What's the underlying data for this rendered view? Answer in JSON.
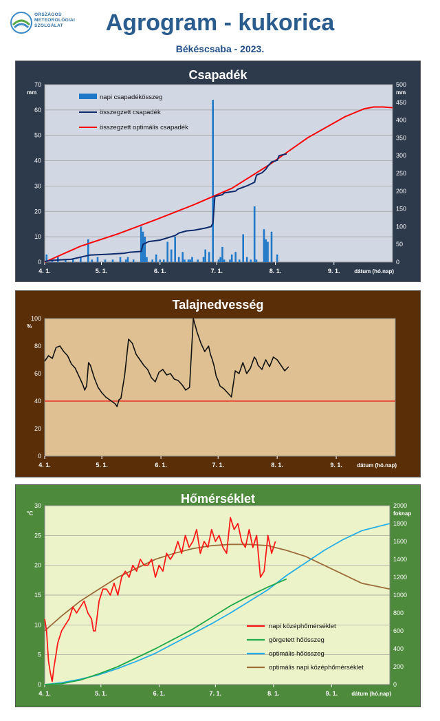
{
  "header": {
    "title": "Agrogram - kukorica",
    "subtitle": "Békéscsaba - 2023.",
    "logo_lines": [
      "ORSZÁGOS",
      "METEOROLÓGIAI",
      "SZOLGÁLAT"
    ]
  },
  "colors": {
    "logo": "#2c6fa8",
    "title": "#2a5c8e",
    "precip_panel": "#2d3a4c",
    "precip_plot": "#d1d7e3",
    "bars": "#1f78c8",
    "cumulative": "#0f2a6b",
    "optimal": "#ff0000",
    "soil_panel": "#5a2f08",
    "soil_plot": "#dfc092",
    "temp_panel": "#4e8a3c",
    "temp_plot": "#edf3c8",
    "daily_temp": "#ff1a1a",
    "rolling_heat": "#1fa84a",
    "optimal_heat": "#27aee6",
    "optimal_daily": "#9c6b3a"
  },
  "chart_data": [
    {
      "type": "bar",
      "title": "Csapadék",
      "ylabel": "mm",
      "y2label": "mm",
      "xlabel": "dátum (hó.nap)",
      "ylim": [
        0,
        70
      ],
      "y2lim": [
        0,
        500
      ],
      "yticks": [
        0,
        10,
        20,
        30,
        40,
        50,
        60,
        70
      ],
      "y2ticks": [
        0,
        50,
        100,
        150,
        200,
        250,
        300,
        350,
        400,
        450,
        500
      ],
      "grid": true,
      "legend_position": "top-left",
      "x_range_days": [
        1,
        185
      ],
      "x_tick_days": [
        1,
        31,
        62,
        92,
        123,
        154
      ],
      "x_tick_labels": [
        "4. 1.",
        "5. 1.",
        "6. 1.",
        "7. 1.",
        "8. 1.",
        "9. 1."
      ],
      "bars": {
        "name": "napi csapadékösszeg",
        "x": [
          2,
          5,
          8,
          12,
          16,
          20,
          24,
          26,
          29,
          33,
          37,
          41,
          44,
          45,
          48,
          52,
          53,
          54,
          55,
          58,
          60,
          62,
          64,
          66,
          68,
          70,
          72,
          74,
          75,
          77,
          78,
          79,
          82,
          85,
          86,
          88,
          90,
          93,
          94,
          95,
          96,
          99,
          100,
          102,
          104,
          106,
          108,
          110,
          112,
          113,
          117,
          118,
          119,
          121,
          124
        ],
        "values": [
          3,
          1,
          2,
          1,
          1,
          2,
          9,
          1,
          2,
          1,
          1,
          2,
          1,
          2,
          1,
          14,
          12,
          10,
          2,
          1,
          3,
          1,
          1,
          8,
          5,
          10,
          2,
          4,
          1,
          1,
          1,
          2,
          1,
          2,
          5,
          4,
          64,
          1,
          2,
          6,
          1,
          1,
          3,
          4,
          1,
          11,
          2,
          1,
          22,
          1,
          13,
          9,
          8,
          12,
          3
        ]
      },
      "series": [
        {
          "name": "összegzett csapadék",
          "axis": "right",
          "x": [
            1,
            5,
            15,
            25,
            34,
            43,
            46,
            52,
            53,
            56,
            62,
            70,
            72,
            76,
            80,
            86,
            89,
            90,
            91,
            95,
            96,
            102,
            103,
            108,
            112,
            113,
            116,
            118,
            119,
            121,
            124,
            125,
            129
          ],
          "y": [
            2,
            5,
            8,
            20,
            22,
            25,
            28,
            30,
            50,
            58,
            62,
            75,
            82,
            88,
            90,
            96,
            100,
            110,
            185,
            190,
            195,
            200,
            205,
            215,
            225,
            245,
            252,
            262,
            270,
            282,
            287,
            300,
            305
          ]
        },
        {
          "name": "összegzett optimális csapadék",
          "axis": "right",
          "x": [
            1,
            20,
            40,
            60,
            80,
            100,
            120,
            140,
            160,
            170,
            175,
            180,
            185
          ],
          "y": [
            0,
            45,
            80,
            120,
            162,
            208,
            275,
            350,
            410,
            432,
            437,
            437,
            435
          ]
        }
      ]
    },
    {
      "type": "line",
      "title": "Talajnedvesség",
      "ylabel": "%",
      "xlabel": "dátum (hó.nap)",
      "ylim": [
        0,
        100
      ],
      "yticks": [
        0,
        20,
        40,
        60,
        80,
        100
      ],
      "x_tick_labels": [
        "4. 1.",
        "5. 1.",
        "6. 1.",
        "7. 1.",
        "8. 1.",
        "9. 1."
      ],
      "threshold": 40,
      "grid": false,
      "series": [
        {
          "x": [
            1,
            3,
            5,
            7,
            9,
            11,
            13,
            15,
            17,
            19,
            21,
            22,
            23,
            24,
            25,
            27,
            29,
            31,
            33,
            34,
            35,
            36,
            37,
            38,
            39,
            40,
            41,
            43,
            45,
            47,
            49,
            51,
            53,
            55,
            57,
            59,
            61,
            63,
            65,
            67,
            69,
            71,
            73,
            75,
            77,
            79,
            81,
            83,
            85,
            87,
            88,
            89,
            90,
            91,
            92,
            93,
            95,
            97,
            99,
            101,
            103,
            105,
            107,
            109,
            111,
            112,
            113,
            115,
            117,
            119,
            121,
            123,
            125,
            127,
            129
          ],
          "y": [
            69,
            73,
            71,
            79,
            80,
            76,
            73,
            67,
            64,
            58,
            52,
            48,
            51,
            68,
            66,
            57,
            50,
            46,
            43,
            42,
            41,
            40,
            39,
            38,
            36,
            41,
            42,
            59,
            85,
            82,
            74,
            70,
            66,
            63,
            57,
            54,
            61,
            63,
            59,
            60,
            56,
            55,
            52,
            48,
            50,
            100,
            90,
            82,
            76,
            80,
            74,
            70,
            65,
            58,
            55,
            51,
            49,
            46,
            43,
            62,
            60,
            68,
            60,
            64,
            72,
            70,
            66,
            63,
            70,
            65,
            72,
            70,
            66,
            62,
            65
          ]
        }
      ]
    },
    {
      "type": "line",
      "title": "Hőmérséklet",
      "ylabel": "°C",
      "y2label": "foknap",
      "xlabel": "dátum (hó.nap)",
      "ylim": [
        0,
        30
      ],
      "y2lim": [
        0,
        2000
      ],
      "yticks": [
        0,
        5,
        10,
        15,
        20,
        25,
        30
      ],
      "y2ticks": [
        0,
        200,
        400,
        600,
        800,
        1000,
        1200,
        1400,
        1600,
        1800,
        2000
      ],
      "x_tick_labels": [
        "4. 1.",
        "5. 1.",
        "6. 1.",
        "7. 1.",
        "8. 1.",
        "9. 1."
      ],
      "grid": true,
      "legend_position": "bottom-right",
      "series": [
        {
          "name": "napi középhőmérséklet",
          "axis": "left",
          "x": [
            1,
            2,
            3,
            4,
            5,
            6,
            7,
            8,
            10,
            12,
            14,
            16,
            18,
            20,
            22,
            24,
            26,
            27,
            28,
            30,
            32,
            34,
            36,
            38,
            40,
            42,
            44,
            46,
            48,
            50,
            52,
            54,
            56,
            58,
            60,
            62,
            64,
            66,
            68,
            70,
            72,
            74,
            76,
            78,
            80,
            82,
            84,
            86,
            88,
            90,
            92,
            94,
            96,
            98,
            100,
            102,
            104,
            106,
            108,
            110,
            112,
            114,
            116,
            118,
            120,
            122,
            124
          ],
          "y": [
            11,
            9,
            4,
            2,
            0.5,
            3,
            5,
            7,
            9,
            10,
            11,
            13,
            12,
            13,
            14,
            12,
            11,
            9,
            9,
            14,
            16,
            16,
            15,
            17,
            15,
            18,
            19,
            18,
            20,
            19,
            21,
            20,
            20,
            21,
            18,
            20,
            19,
            22,
            21,
            22,
            24,
            22,
            25,
            23,
            24,
            26,
            22,
            24,
            23,
            26,
            24,
            25,
            23,
            22,
            28,
            26,
            27,
            24,
            23,
            26,
            23,
            25,
            18,
            19,
            25,
            22,
            24
          ]
        },
        {
          "name": "görgetett hőösszeg",
          "axis": "right",
          "x": [
            1,
            10,
            20,
            30,
            40,
            50,
            60,
            70,
            80,
            90,
            100,
            110,
            120,
            130
          ],
          "y": [
            0,
            10,
            50,
            120,
            200,
            300,
            400,
            510,
            620,
            750,
            880,
            990,
            1090,
            1180
          ]
        },
        {
          "name": "optimális hőösszeg",
          "axis": "right",
          "x": [
            1,
            10,
            20,
            30,
            40,
            50,
            60,
            70,
            80,
            90,
            100,
            110,
            120,
            130,
            140,
            150,
            160,
            170,
            185
          ],
          "y": [
            0,
            20,
            60,
            110,
            180,
            260,
            350,
            460,
            570,
            680,
            800,
            930,
            1060,
            1220,
            1360,
            1500,
            1620,
            1720,
            1800
          ]
        },
        {
          "name": "optimális napi középhőmérséklet",
          "axis": "left",
          "x": [
            1,
            10,
            20,
            30,
            40,
            50,
            60,
            70,
            80,
            90,
            100,
            110,
            120,
            130,
            140,
            150,
            160,
            170,
            185
          ],
          "y": [
            9,
            11.5,
            14,
            16,
            18,
            19.5,
            21,
            22,
            22.8,
            23.3,
            23.5,
            23.5,
            23.3,
            22.5,
            21.5,
            20,
            18.5,
            17,
            16
          ]
        }
      ]
    }
  ]
}
